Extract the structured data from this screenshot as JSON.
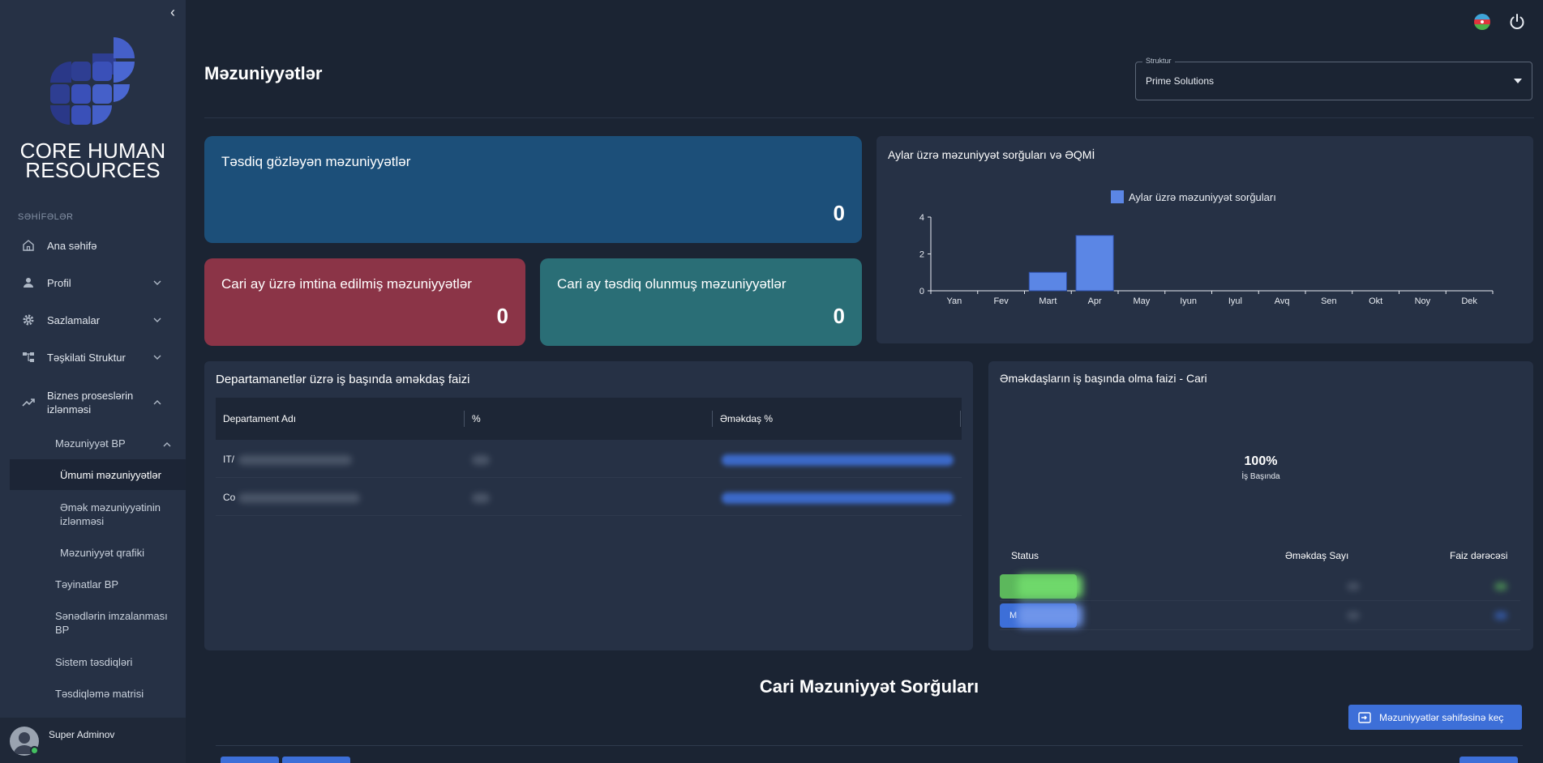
{
  "sidebar": {
    "brand": "CORE HUMAN RESOURCES",
    "brand_line1": "CORE HUMAN",
    "brand_line2": "RESOURCES",
    "section_label": "SƏHİFƏLƏR",
    "items": {
      "home": "Ana səhifə",
      "profile": "Profil",
      "settings": "Sazlamalar",
      "org": "Təşkilati Struktur",
      "business": "Biznes proseslərin izlənməsi"
    },
    "business_sub": {
      "leave_bp": "Məzuniyyət BP",
      "general_leaves": "Ümumi məzuniyyətlər",
      "leave_tracking": "Əmək məzuniyyətinin izlənməsi",
      "leave_schedule": "Məzuniyyət qrafiki",
      "appointments": "Təyinatlar BP",
      "doc_signing": "Sənədlərin imzalanması BP",
      "system_approvals": "Sistem təsdiqləri",
      "approval_matrix": "Təsdiqləmə matrisi"
    },
    "user_name": "Super Adminov"
  },
  "header": {
    "title": "Məzuniyyətlər",
    "structure_label": "Struktur",
    "structure_value": "Prime Solutions"
  },
  "cards": {
    "pending": {
      "title": "Təsdiq gözləyən məzuniyyətlər",
      "value": "0"
    },
    "rejected": {
      "title": "Cari ay üzrə imtina edilmiş məzuniyyətlər",
      "value": "0"
    },
    "approved": {
      "title": "Cari ay təsdiq olunmuş məzuniyyətlər",
      "value": "0"
    }
  },
  "chart_panel": {
    "title": "Aylar üzrə məzuniyyət sorğuları və ƏQMİ"
  },
  "chart_data": {
    "type": "bar",
    "title": "",
    "categories": [
      "Yan",
      "Fev",
      "Mart",
      "Apr",
      "May",
      "Iyun",
      "Iyul",
      "Avq",
      "Sen",
      "Okt",
      "Noy",
      "Dek"
    ],
    "series": [
      {
        "name": "Aylar üzrə məzuniyyət sorğuları",
        "values": [
          0,
          0,
          1,
          3,
          0,
          0,
          0,
          0,
          0,
          0,
          0,
          0
        ],
        "color": "#5b86e5"
      }
    ],
    "yticks": [
      "0",
      "2",
      "4"
    ],
    "ylim": [
      0,
      4
    ],
    "legend_position": "top",
    "grid": false
  },
  "dept_panel": {
    "title": "Departamanetlər üzrə iş başında əməkdaş faizi",
    "columns": [
      "Departament Adı",
      "%",
      "Əməkdaş %"
    ],
    "rows": [
      {
        "name": "IT/"
      },
      {
        "name": "Co"
      }
    ]
  },
  "attendance_panel": {
    "title": "Əməkdaşların iş başında olma faizi - Cari",
    "percent": "100%",
    "percent_label": "İş Başında",
    "columns": [
      "Status",
      "Əməkdaş Sayı",
      "Faiz dərəcəsi"
    ],
    "rows": [
      {
        "chip_text": "",
        "color": "#5cb85c"
      },
      {
        "chip_text": "M",
        "color": "#3d6fd8"
      }
    ]
  },
  "bottom": {
    "title": "Cari Məzuniyyət Sorğuları",
    "goto_button": "Məzuniyyətlər səhifəsinə keç"
  },
  "colors": {
    "accent": "#3d6fd8",
    "pending_card": "#1c4f79",
    "rejected_card": "#8b3447",
    "approved_card": "#2a6e76",
    "bar": "#5b86e5"
  }
}
